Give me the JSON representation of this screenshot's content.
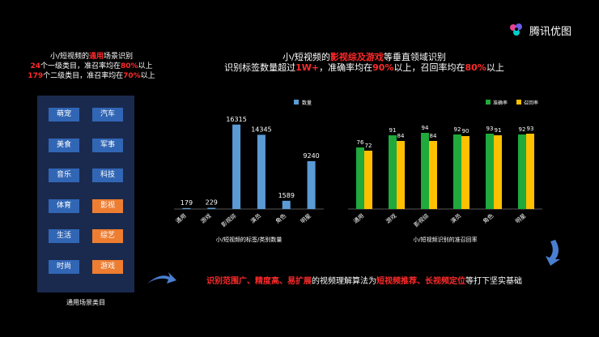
{
  "logo": {
    "text": "腾讯优图",
    "icon": "tencent-youtu-logo-icon"
  },
  "left_title": {
    "line1_pre": "小/短视频的",
    "line1_hl": "通用",
    "line1_post": "场景识别",
    "line2_num": "24",
    "line2_mid": "个一级类目，准召率均在",
    "line2_pct": "80%",
    "line2_post": "以上",
    "line3_num": "179",
    "line3_mid": "个二级类目，准召率均在",
    "line3_pct": "70%",
    "line3_post": "以上"
  },
  "categories": [
    {
      "label": "萌宠",
      "color": "blue"
    },
    {
      "label": "汽车",
      "color": "blue"
    },
    {
      "label": "美食",
      "color": "blue"
    },
    {
      "label": "军事",
      "color": "blue"
    },
    {
      "label": "音乐",
      "color": "blue"
    },
    {
      "label": "科技",
      "color": "blue"
    },
    {
      "label": "体育",
      "color": "blue"
    },
    {
      "label": "影视",
      "color": "orange"
    },
    {
      "label": "生活",
      "color": "blue"
    },
    {
      "label": "综艺",
      "color": "orange"
    },
    {
      "label": "时尚",
      "color": "blue"
    },
    {
      "label": "游戏",
      "color": "orange"
    }
  ],
  "category_caption": "通用场景类目",
  "main_title": {
    "line1_pre": "小/短视频的",
    "line1_hl": "影视综及游戏",
    "line1_post": "等垂直领域识别",
    "line2_pre": "识别标签数量超过",
    "line2_hl1": "1W+",
    "line2_mid": "，准确率均在",
    "line2_hl2": "90%",
    "line2_mid2": "以上，召回率均在",
    "line2_hl3": "80%",
    "line2_post": "以上"
  },
  "bottom_line": {
    "hl1": "识别范围广、精度高、易扩展",
    "mid": "的视频理解算法为",
    "hl2": "短视频推荐、长视频定位",
    "post": "等打下坚实基础"
  },
  "colors": {
    "bar_blue": "#5b9bd5",
    "green": "#1faa3b",
    "yellow": "#ffc000",
    "red": "#ff2a2a",
    "panel": "#1a2a4e",
    "orange": "#ed7d31"
  },
  "chart_data": [
    {
      "type": "bar",
      "categories": [
        "通用",
        "游戏",
        "影视综",
        "演员",
        "角色",
        "明星"
      ],
      "series": [
        {
          "name": "数量",
          "values": [
            179,
            229,
            16315,
            14345,
            1589,
            9240
          ]
        }
      ],
      "xlabel": "小/短视频的标签/类别数量",
      "ylim": [
        0,
        18000
      ],
      "legend": "top-right",
      "grid": false
    },
    {
      "type": "bar",
      "categories": [
        "通用",
        "游戏",
        "影视综",
        "演员",
        "角色",
        "明星"
      ],
      "series": [
        {
          "name": "准确率",
          "values": [
            76,
            91,
            94,
            92,
            93,
            92
          ]
        },
        {
          "name": "召回率",
          "values": [
            72,
            84,
            84,
            90,
            91,
            93
          ]
        }
      ],
      "xlabel": "小/短视频识别的准召回率",
      "ylim": [
        0,
        100
      ],
      "legend": "top-right",
      "grid": false
    }
  ]
}
